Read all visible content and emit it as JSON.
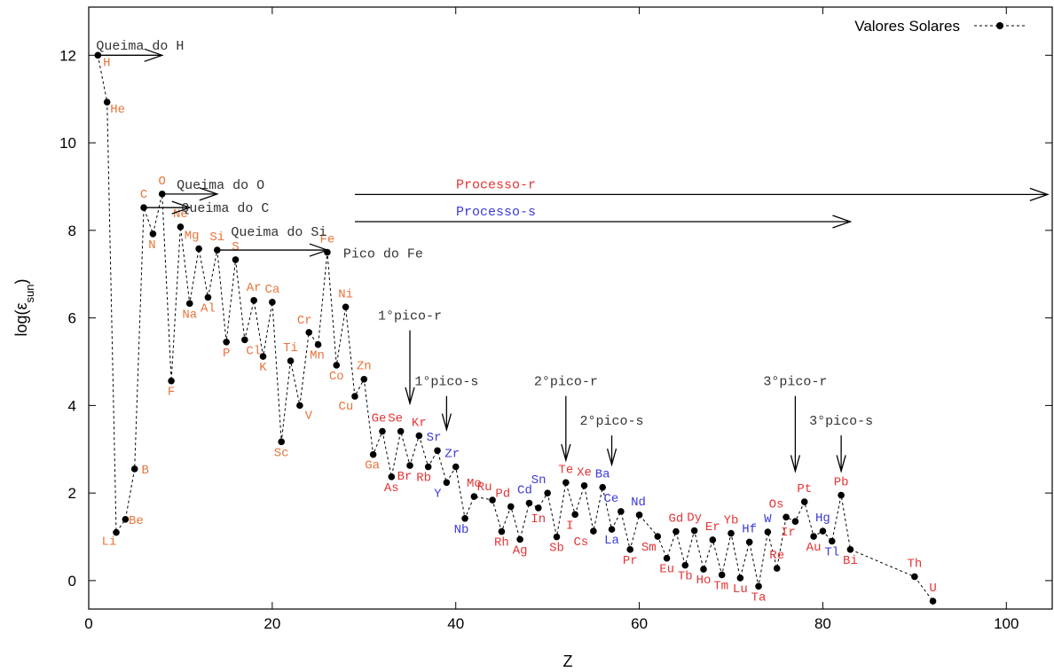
{
  "chart_data": {
    "type": "scatter",
    "xlabel": "Z",
    "ylabel": "log(ε",
    "ylabel_sub": "sun",
    "ylabel_close": ")",
    "xlim": [
      0,
      105
    ],
    "ylim": [
      -0.65,
      13.1
    ],
    "xticks": [
      0,
      20,
      40,
      60,
      80,
      100
    ],
    "yticks": [
      0,
      2,
      4,
      6,
      8,
      10,
      12
    ],
    "grid": false,
    "legend": {
      "label": "Valores Solares",
      "placement": "top-right"
    },
    "series": [
      {
        "name": "Valores Solares",
        "line_style": "dotted",
        "points": [
          {
            "z": 1,
            "log": 12.0,
            "el": "H",
            "group": "light"
          },
          {
            "z": 2,
            "log": 10.93,
            "el": "He",
            "group": "light"
          },
          {
            "z": 3,
            "log": 1.1,
            "el": "Li",
            "group": "light"
          },
          {
            "z": 4,
            "log": 1.4,
            "el": "Be",
            "group": "light"
          },
          {
            "z": 5,
            "log": 2.55,
            "el": "B",
            "group": "light"
          },
          {
            "z": 6,
            "log": 8.52,
            "el": "C",
            "group": "light"
          },
          {
            "z": 7,
            "log": 7.92,
            "el": "N",
            "group": "light"
          },
          {
            "z": 8,
            "log": 8.83,
            "el": "O",
            "group": "light"
          },
          {
            "z": 9,
            "log": 4.56,
            "el": "F",
            "group": "light"
          },
          {
            "z": 10,
            "log": 8.08,
            "el": "Ne",
            "group": "light"
          },
          {
            "z": 11,
            "log": 6.33,
            "el": "Na",
            "group": "light"
          },
          {
            "z": 12,
            "log": 7.58,
            "el": "Mg",
            "group": "light"
          },
          {
            "z": 13,
            "log": 6.47,
            "el": "Al",
            "group": "light"
          },
          {
            "z": 14,
            "log": 7.55,
            "el": "Si",
            "group": "light"
          },
          {
            "z": 15,
            "log": 5.45,
            "el": "P",
            "group": "light"
          },
          {
            "z": 16,
            "log": 7.33,
            "el": "S",
            "group": "light"
          },
          {
            "z": 17,
            "log": 5.5,
            "el": "Cl",
            "group": "light"
          },
          {
            "z": 18,
            "log": 6.4,
            "el": "Ar",
            "group": "light"
          },
          {
            "z": 19,
            "log": 5.12,
            "el": "K",
            "group": "light"
          },
          {
            "z": 20,
            "log": 6.36,
            "el": "Ca",
            "group": "light"
          },
          {
            "z": 21,
            "log": 3.17,
            "el": "Sc",
            "group": "light"
          },
          {
            "z": 22,
            "log": 5.02,
            "el": "Ti",
            "group": "light"
          },
          {
            "z": 23,
            "log": 4.0,
            "el": "V",
            "group": "light"
          },
          {
            "z": 24,
            "log": 5.67,
            "el": "Cr",
            "group": "light"
          },
          {
            "z": 25,
            "log": 5.39,
            "el": "Mn",
            "group": "light"
          },
          {
            "z": 26,
            "log": 7.5,
            "el": "Fe",
            "group": "light"
          },
          {
            "z": 27,
            "log": 4.92,
            "el": "Co",
            "group": "light"
          },
          {
            "z": 28,
            "log": 6.25,
            "el": "Ni",
            "group": "light"
          },
          {
            "z": 29,
            "log": 4.21,
            "el": "Cu",
            "group": "light"
          },
          {
            "z": 30,
            "log": 4.6,
            "el": "Zn",
            "group": "light"
          },
          {
            "z": 31,
            "log": 2.88,
            "el": "Ga",
            "group": "light"
          },
          {
            "z": 32,
            "log": 3.41,
            "el": "Ge",
            "group": "r"
          },
          {
            "z": 33,
            "log": 2.37,
            "el": "As",
            "group": "r"
          },
          {
            "z": 34,
            "log": 3.41,
            "el": "Se",
            "group": "r"
          },
          {
            "z": 35,
            "log": 2.63,
            "el": "Br",
            "group": "r"
          },
          {
            "z": 36,
            "log": 3.31,
            "el": "Kr",
            "group": "r"
          },
          {
            "z": 37,
            "log": 2.6,
            "el": "Rb",
            "group": "r"
          },
          {
            "z": 38,
            "log": 2.97,
            "el": "Sr",
            "group": "s"
          },
          {
            "z": 39,
            "log": 2.24,
            "el": "Y",
            "group": "s"
          },
          {
            "z": 40,
            "log": 2.6,
            "el": "Zr",
            "group": "s"
          },
          {
            "z": 41,
            "log": 1.42,
            "el": "Nb",
            "group": "s"
          },
          {
            "z": 42,
            "log": 1.92,
            "el": "Mo",
            "group": "r"
          },
          {
            "z": 44,
            "log": 1.84,
            "el": "Ru",
            "group": "r"
          },
          {
            "z": 45,
            "log": 1.12,
            "el": "Rh",
            "group": "r"
          },
          {
            "z": 46,
            "log": 1.69,
            "el": "Pd",
            "group": "r"
          },
          {
            "z": 47,
            "log": 0.94,
            "el": "Ag",
            "group": "r"
          },
          {
            "z": 48,
            "log": 1.77,
            "el": "Cd",
            "group": "s"
          },
          {
            "z": 49,
            "log": 1.66,
            "el": "In",
            "group": "r"
          },
          {
            "z": 50,
            "log": 2.0,
            "el": "Sn",
            "group": "s"
          },
          {
            "z": 51,
            "log": 1.0,
            "el": "Sb",
            "group": "r"
          },
          {
            "z": 52,
            "log": 2.24,
            "el": "Te",
            "group": "r"
          },
          {
            "z": 53,
            "log": 1.51,
            "el": "I",
            "group": "r"
          },
          {
            "z": 54,
            "log": 2.17,
            "el": "Xe",
            "group": "r"
          },
          {
            "z": 55,
            "log": 1.13,
            "el": "Cs",
            "group": "r"
          },
          {
            "z": 56,
            "log": 2.13,
            "el": "Ba",
            "group": "s"
          },
          {
            "z": 57,
            "log": 1.17,
            "el": "La",
            "group": "s"
          },
          {
            "z": 58,
            "log": 1.58,
            "el": "Ce",
            "group": "s"
          },
          {
            "z": 59,
            "log": 0.71,
            "el": "Pr",
            "group": "r"
          },
          {
            "z": 60,
            "log": 1.5,
            "el": "Nd",
            "group": "s"
          },
          {
            "z": 62,
            "log": 1.01,
            "el": "Sm",
            "group": "r"
          },
          {
            "z": 63,
            "log": 0.51,
            "el": "Eu",
            "group": "r"
          },
          {
            "z": 64,
            "log": 1.12,
            "el": "Gd",
            "group": "r"
          },
          {
            "z": 65,
            "log": 0.35,
            "el": "Tb",
            "group": "r"
          },
          {
            "z": 66,
            "log": 1.14,
            "el": "Dy",
            "group": "r"
          },
          {
            "z": 67,
            "log": 0.26,
            "el": "Ho",
            "group": "r"
          },
          {
            "z": 68,
            "log": 0.93,
            "el": "Er",
            "group": "r"
          },
          {
            "z": 69,
            "log": 0.13,
            "el": "Tm",
            "group": "r"
          },
          {
            "z": 70,
            "log": 1.08,
            "el": "Yb",
            "group": "r"
          },
          {
            "z": 71,
            "log": 0.06,
            "el": "Lu",
            "group": "r"
          },
          {
            "z": 72,
            "log": 0.88,
            "el": "Hf",
            "group": "s"
          },
          {
            "z": 73,
            "log": -0.13,
            "el": "Ta",
            "group": "r"
          },
          {
            "z": 74,
            "log": 1.11,
            "el": "W",
            "group": "s"
          },
          {
            "z": 75,
            "log": 0.28,
            "el": "Re",
            "group": "r"
          },
          {
            "z": 76,
            "log": 1.45,
            "el": "Os",
            "group": "r"
          },
          {
            "z": 77,
            "log": 1.35,
            "el": "Ir",
            "group": "r"
          },
          {
            "z": 78,
            "log": 1.8,
            "el": "Pt",
            "group": "r"
          },
          {
            "z": 79,
            "log": 1.01,
            "el": "Au",
            "group": "r"
          },
          {
            "z": 80,
            "log": 1.13,
            "el": "Hg",
            "group": "s"
          },
          {
            "z": 81,
            "log": 0.9,
            "el": "Tl",
            "group": "s"
          },
          {
            "z": 82,
            "log": 1.95,
            "el": "Pb",
            "group": "r"
          },
          {
            "z": 83,
            "log": 0.71,
            "el": "Bi",
            "group": "r"
          },
          {
            "z": 90,
            "log": 0.09,
            "el": "Th",
            "group": "r"
          },
          {
            "z": 92,
            "log": -0.47,
            "el": "U",
            "group": "r"
          }
        ]
      }
    ],
    "annotations": {
      "burning_arrows": [
        {
          "text": "Queima do H",
          "from": 1,
          "to": 8,
          "y": 12.0
        },
        {
          "text": "Queima do O",
          "from": 8,
          "to": 14,
          "y": 8.83
        },
        {
          "text": "Queima do C",
          "from": 6,
          "to": 11,
          "y": 8.52
        },
        {
          "text": "Queima do Si",
          "from": 14,
          "to": 26,
          "y": 7.55
        }
      ],
      "process_arrows": [
        {
          "text": "Processo-r",
          "from": 29,
          "to": 104.5,
          "y": 8.82,
          "group": "r"
        },
        {
          "text": "Processo-s",
          "from": 29,
          "to": 83,
          "y": 8.2,
          "group": "s"
        }
      ],
      "peaks": [
        {
          "text": "1°pico-r",
          "x": 35,
          "y_top": 6.0,
          "y_tip": 4.05
        },
        {
          "text": "1°pico-s",
          "x": 39,
          "y_top": 4.5,
          "y_tip": 3.45
        },
        {
          "text": "2°pico-r",
          "x": 52,
          "y_top": 4.5,
          "y_tip": 2.75
        },
        {
          "text": "2°pico-s",
          "x": 57,
          "y_top": 3.6,
          "y_tip": 2.65
        },
        {
          "text": "3°pico-r",
          "x": 77,
          "y_top": 4.5,
          "y_tip": 2.5
        },
        {
          "text": "3°pico-s",
          "x": 82,
          "y_top": 3.6,
          "y_tip": 2.5
        }
      ],
      "fe_peak": {
        "text": "Pico do Fe"
      }
    },
    "colors": {
      "light": "#e8743b",
      "r": "#e33535",
      "s": "#3b3bd6",
      "annotation": "#333333"
    }
  }
}
